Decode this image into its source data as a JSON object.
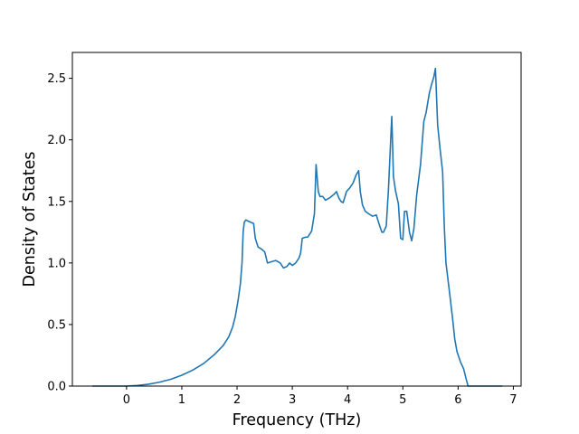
{
  "chart_data": {
    "type": "line",
    "xlabel": "Frequency (THz)",
    "ylabel": "Density of States",
    "xlim": [
      -0.98,
      7.14
    ],
    "ylim": [
      0,
      2.71
    ],
    "x_ticks": [
      0,
      1,
      2,
      3,
      4,
      5,
      6,
      7
    ],
    "y_ticks": [
      0.0,
      0.5,
      1.0,
      1.5,
      2.0,
      2.5
    ],
    "x_tick_labels": [
      "0",
      "1",
      "2",
      "3",
      "4",
      "5",
      "6",
      "7"
    ],
    "y_tick_labels": [
      "0.0",
      "0.5",
      "1.0",
      "1.5",
      "2.0",
      "2.5"
    ],
    "grid": false,
    "line_color": "#1f77b4",
    "series": [
      {
        "points": [
          [
            -0.62,
            0.0
          ],
          [
            0.0,
            0.0
          ],
          [
            0.2,
            0.005
          ],
          [
            0.4,
            0.015
          ],
          [
            0.6,
            0.032
          ],
          [
            0.8,
            0.055
          ],
          [
            1.0,
            0.088
          ],
          [
            1.2,
            0.13
          ],
          [
            1.4,
            0.185
          ],
          [
            1.6,
            0.26
          ],
          [
            1.75,
            0.33
          ],
          [
            1.85,
            0.4
          ],
          [
            1.92,
            0.48
          ],
          [
            1.97,
            0.57
          ],
          [
            2.02,
            0.7
          ],
          [
            2.06,
            0.83
          ],
          [
            2.09,
            1.0
          ],
          [
            2.11,
            1.25
          ],
          [
            2.13,
            1.33
          ],
          [
            2.16,
            1.35
          ],
          [
            2.2,
            1.34
          ],
          [
            2.3,
            1.32
          ],
          [
            2.33,
            1.2
          ],
          [
            2.38,
            1.13
          ],
          [
            2.45,
            1.11
          ],
          [
            2.5,
            1.09
          ],
          [
            2.55,
            1.0
          ],
          [
            2.62,
            1.01
          ],
          [
            2.7,
            1.02
          ],
          [
            2.78,
            1.0
          ],
          [
            2.84,
            0.96
          ],
          [
            2.9,
            0.97
          ],
          [
            2.95,
            1.0
          ],
          [
            3.0,
            0.98
          ],
          [
            3.06,
            1.0
          ],
          [
            3.12,
            1.04
          ],
          [
            3.15,
            1.08
          ],
          [
            3.18,
            1.2
          ],
          [
            3.24,
            1.21
          ],
          [
            3.28,
            1.21
          ],
          [
            3.35,
            1.26
          ],
          [
            3.4,
            1.4
          ],
          [
            3.43,
            1.8
          ],
          [
            3.47,
            1.58
          ],
          [
            3.5,
            1.54
          ],
          [
            3.55,
            1.54
          ],
          [
            3.6,
            1.51
          ],
          [
            3.68,
            1.53
          ],
          [
            3.76,
            1.56
          ],
          [
            3.8,
            1.58
          ],
          [
            3.84,
            1.53
          ],
          [
            3.88,
            1.5
          ],
          [
            3.92,
            1.49
          ],
          [
            3.98,
            1.58
          ],
          [
            4.04,
            1.61
          ],
          [
            4.1,
            1.65
          ],
          [
            4.15,
            1.71
          ],
          [
            4.2,
            1.75
          ],
          [
            4.23,
            1.58
          ],
          [
            4.27,
            1.47
          ],
          [
            4.32,
            1.42
          ],
          [
            4.38,
            1.4
          ],
          [
            4.45,
            1.38
          ],
          [
            4.52,
            1.39
          ],
          [
            4.56,
            1.33
          ],
          [
            4.62,
            1.25
          ],
          [
            4.65,
            1.25
          ],
          [
            4.7,
            1.3
          ],
          [
            4.74,
            1.6
          ],
          [
            4.78,
            2.0
          ],
          [
            4.8,
            2.19
          ],
          [
            4.83,
            1.7
          ],
          [
            4.87,
            1.58
          ],
          [
            4.92,
            1.48
          ],
          [
            4.96,
            1.2
          ],
          [
            5.0,
            1.19
          ],
          [
            5.03,
            1.42
          ],
          [
            5.07,
            1.42
          ],
          [
            5.12,
            1.25
          ],
          [
            5.16,
            1.18
          ],
          [
            5.2,
            1.28
          ],
          [
            5.25,
            1.55
          ],
          [
            5.32,
            1.8
          ],
          [
            5.38,
            2.15
          ],
          [
            5.42,
            2.22
          ],
          [
            5.48,
            2.38
          ],
          [
            5.52,
            2.45
          ],
          [
            5.56,
            2.51
          ],
          [
            5.59,
            2.58
          ],
          [
            5.63,
            2.12
          ],
          [
            5.68,
            1.9
          ],
          [
            5.72,
            1.74
          ],
          [
            5.75,
            1.3
          ],
          [
            5.78,
            1.0
          ],
          [
            5.84,
            0.78
          ],
          [
            5.9,
            0.55
          ],
          [
            5.94,
            0.38
          ],
          [
            5.98,
            0.28
          ],
          [
            6.04,
            0.2
          ],
          [
            6.1,
            0.14
          ],
          [
            6.15,
            0.05
          ],
          [
            6.18,
            0.0
          ],
          [
            6.8,
            0.0
          ]
        ]
      }
    ]
  }
}
